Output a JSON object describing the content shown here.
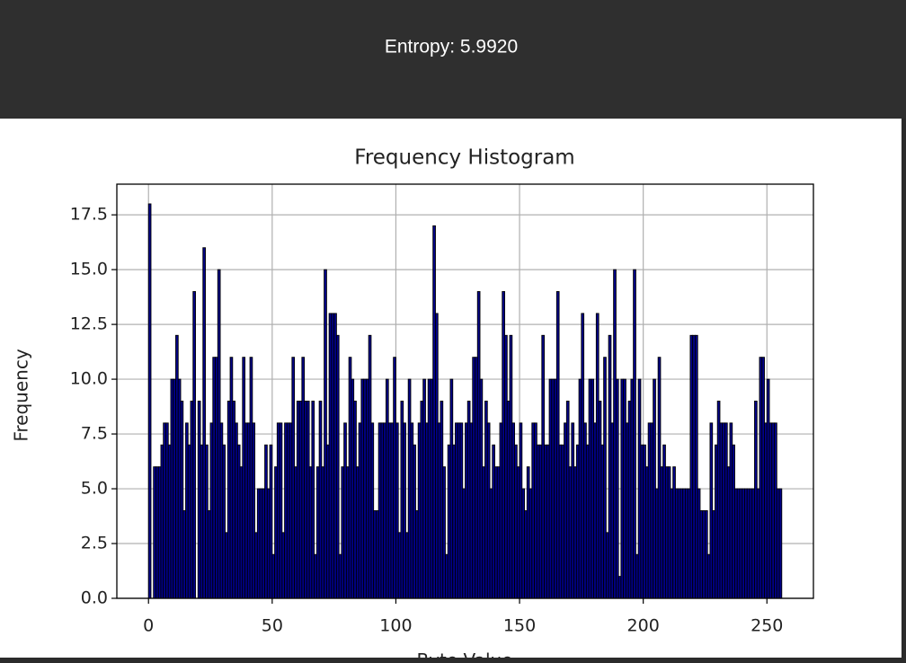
{
  "header": {
    "text": "Entropy: 5.9920"
  },
  "chart_data": {
    "type": "histogram",
    "title": "Frequency Histogram",
    "x_label": "Byte Value",
    "y_label": "Frequency",
    "color": "#00008b",
    "edge_color": "#000000",
    "grid": true,
    "bins": [
      0,
      1,
      2,
      3,
      4,
      5,
      6,
      7,
      8,
      9,
      10,
      11,
      12,
      13,
      14,
      15,
      16,
      17,
      18,
      19,
      20,
      21,
      22,
      23,
      24,
      25,
      26,
      27,
      28,
      29,
      30,
      31,
      32,
      33,
      34,
      35,
      36,
      37,
      38,
      39,
      40,
      41,
      42,
      43,
      44,
      45,
      46,
      47,
      48,
      49,
      50,
      51,
      52,
      53,
      54,
      55,
      56,
      57,
      58,
      59,
      60,
      61,
      62,
      63,
      64,
      65,
      66,
      67,
      68,
      69,
      70,
      71,
      72,
      73,
      74,
      75,
      76,
      77,
      78,
      79,
      80,
      81,
      82,
      83,
      84,
      85,
      86,
      87,
      88,
      89,
      90,
      91,
      92,
      93,
      94,
      95,
      96,
      97,
      98,
      99,
      100,
      101,
      102,
      103,
      104,
      105,
      106,
      107,
      108,
      109,
      110,
      111,
      112,
      113,
      114,
      115,
      116,
      117,
      118,
      119,
      120,
      121,
      122,
      123,
      124,
      125,
      126,
      127,
      128,
      129,
      130,
      131,
      132,
      133,
      134,
      135,
      136,
      137,
      138,
      139,
      140,
      141,
      142,
      143,
      144,
      145,
      146,
      147,
      148,
      149,
      150,
      151,
      152,
      153,
      154,
      155,
      156,
      157,
      158,
      159,
      160,
      161,
      162,
      163,
      164,
      165,
      166,
      167,
      168,
      169,
      170,
      171,
      172,
      173,
      174,
      175,
      176,
      177,
      178,
      179,
      180,
      181,
      182,
      183,
      184,
      185,
      186,
      187,
      188,
      189,
      190,
      191,
      192,
      193,
      194,
      195,
      196,
      197,
      198,
      199,
      200,
      201,
      202,
      203,
      204,
      205,
      206,
      207,
      208,
      209,
      210,
      211,
      212,
      213,
      214,
      215,
      216,
      217,
      218,
      219,
      220,
      221,
      222,
      223,
      224,
      225,
      226,
      227,
      228,
      229,
      230,
      231,
      232,
      233,
      234,
      235,
      236,
      237,
      238,
      239,
      240,
      241,
      242,
      243,
      244,
      245,
      246,
      247,
      248,
      249,
      250,
      251,
      252,
      253,
      254,
      255,
      256
    ],
    "values": [
      18,
      0,
      6,
      6,
      6,
      7,
      8,
      8,
      7,
      10,
      10,
      12,
      10,
      9,
      4,
      8,
      7,
      9,
      14,
      0,
      9,
      7,
      16,
      7,
      4,
      8,
      11,
      11,
      15,
      8,
      7,
      3,
      9,
      11,
      9,
      8,
      7,
      6,
      11,
      8,
      8,
      11,
      8,
      3,
      5,
      5,
      5,
      7,
      5,
      7,
      2,
      6,
      8,
      8,
      3,
      8,
      8,
      8,
      11,
      6,
      9,
      9,
      11,
      9,
      9,
      6,
      9,
      2,
      6,
      9,
      6,
      15,
      7,
      13,
      13,
      13,
      12,
      2,
      6,
      8,
      6,
      11,
      10,
      9,
      6,
      8,
      10,
      10,
      10,
      12,
      8,
      4,
      4,
      8,
      8,
      8,
      10,
      8,
      8,
      11,
      8,
      3,
      9,
      8,
      3,
      10,
      8,
      7,
      4,
      8,
      9,
      10,
      8,
      10,
      10,
      17,
      13,
      8,
      9,
      6,
      2,
      7,
      10,
      7,
      8,
      8,
      8,
      5,
      8,
      9,
      8,
      11,
      11,
      14,
      10,
      6,
      9,
      8,
      5,
      7,
      6,
      6,
      8,
      14,
      12,
      9,
      12,
      8,
      7,
      6,
      8,
      5,
      4,
      6,
      5,
      8,
      8,
      7,
      7,
      12,
      7,
      7,
      10,
      10,
      10,
      14,
      7,
      7,
      8,
      9,
      6,
      8,
      6,
      7,
      10,
      13,
      8,
      7,
      10,
      10,
      8,
      13,
      9,
      7,
      11,
      3,
      12,
      8,
      15,
      10,
      1,
      10,
      10,
      8,
      9,
      10,
      15,
      2,
      10,
      7,
      7,
      6,
      8,
      8,
      10,
      5,
      11,
      6,
      7,
      6,
      6,
      5,
      6,
      5,
      5,
      5,
      5,
      5,
      5,
      12,
      12,
      12,
      5,
      4,
      4,
      4,
      2,
      8,
      4,
      7,
      9,
      8,
      8,
      8,
      6,
      8,
      7,
      5,
      5,
      5,
      5,
      5,
      5,
      5,
      5,
      9,
      5,
      11,
      11,
      8,
      10,
      8,
      8,
      8,
      5,
      5
    ],
    "xlim": [
      -12.8,
      268.8
    ],
    "xticks": [
      0,
      50,
      100,
      150,
      200,
      250
    ],
    "ylim": [
      0,
      18.9
    ],
    "yticks": [
      {
        "value": 0,
        "label": "0.0"
      },
      2.5,
      {
        "value": 5,
        "label": "5.0"
      },
      7.5,
      {
        "value": 10,
        "label": "10.0"
      },
      12.5,
      {
        "value": 15,
        "label": "15.0"
      },
      17.5
    ]
  }
}
